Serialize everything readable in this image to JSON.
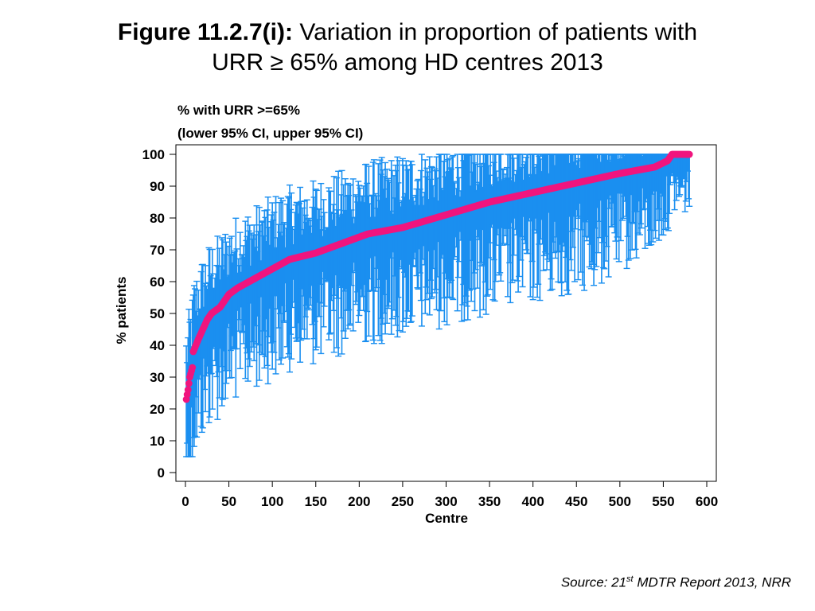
{
  "figure": {
    "label": "Figure 11.2.7(i):",
    "title_line1": "Variation in proportion of patients with",
    "title_line2": "URR ≥ 65% among HD centres 2013"
  },
  "source": {
    "prefix": "Source: 21",
    "superscript": "st",
    "suffix": " MDTR Report 2013, NRR"
  },
  "colors": {
    "point": "#f0157e",
    "ci": "#1a8ff0",
    "axis": "#000000"
  },
  "chart_data": {
    "type": "scatter",
    "title": "",
    "legend_line1": "% with URR >=65%",
    "legend_line2": "(lower 95% CI, upper 95% CI)",
    "xlabel": "Centre",
    "ylabel": "% patients",
    "xlim": [
      -10,
      610
    ],
    "ylim": [
      -3,
      103
    ],
    "xticks": [
      0,
      50,
      100,
      150,
      200,
      250,
      300,
      350,
      400,
      450,
      500,
      550,
      600
    ],
    "yticks": [
      0,
      10,
      20,
      30,
      40,
      50,
      60,
      70,
      80,
      90,
      100
    ],
    "n_centres": 580,
    "series": [
      {
        "name": "% with URR >=65% (sorted)",
        "curve_points": [
          [
            1,
            23
          ],
          [
            3,
            26
          ],
          [
            5,
            30
          ],
          [
            8,
            33
          ],
          [
            9,
            38
          ],
          [
            15,
            42
          ],
          [
            20,
            45
          ],
          [
            25,
            48
          ],
          [
            30,
            50
          ],
          [
            40,
            52
          ],
          [
            50,
            56
          ],
          [
            60,
            58
          ],
          [
            80,
            61
          ],
          [
            100,
            64
          ],
          [
            120,
            67
          ],
          [
            150,
            69
          ],
          [
            170,
            71
          ],
          [
            190,
            73
          ],
          [
            210,
            75
          ],
          [
            250,
            77
          ],
          [
            300,
            81
          ],
          [
            350,
            85
          ],
          [
            400,
            88
          ],
          [
            450,
            91
          ],
          [
            500,
            94
          ],
          [
            540,
            96
          ],
          [
            555,
            98
          ],
          [
            560,
            100
          ],
          [
            580,
            100
          ]
        ]
      },
      {
        "name": "95% CI",
        "typical_lower_offset": 13,
        "typical_upper_offset": 10
      }
    ]
  }
}
